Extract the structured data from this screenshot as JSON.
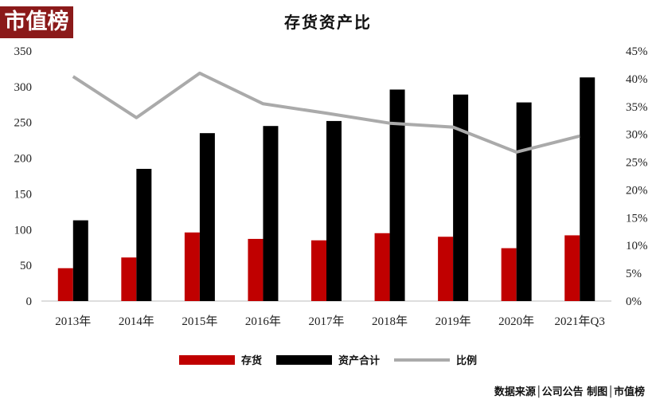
{
  "logo_text": "市值榜",
  "chart_data": {
    "type": "bar",
    "title": "存货资产比",
    "categories": [
      "2013年",
      "2014年",
      "2015年",
      "2016年",
      "2017年",
      "2018年",
      "2019年",
      "2020年",
      "2021年Q3"
    ],
    "series": [
      {
        "name": "存货",
        "type": "bar",
        "axis": "left",
        "color": "#c00000",
        "values": [
          46,
          61,
          96,
          87,
          85,
          95,
          90,
          74,
          92
        ]
      },
      {
        "name": "资产合计",
        "type": "bar",
        "axis": "left",
        "color": "#000000",
        "values": [
          113,
          185,
          235,
          245,
          252,
          296,
          289,
          278,
          313
        ]
      },
      {
        "name": "比例",
        "type": "line",
        "axis": "right",
        "color": "#aaaaaa",
        "values": [
          40.4,
          33.0,
          41.0,
          35.5,
          33.8,
          32.0,
          31.3,
          26.8,
          29.7
        ]
      }
    ],
    "ylim": [
      0,
      350
    ],
    "yticks": [
      0,
      50,
      100,
      150,
      200,
      250,
      300,
      350
    ],
    "y2lim": [
      0,
      45
    ],
    "y2ticks": [
      "0%",
      "5%",
      "10%",
      "15%",
      "20%",
      "25%",
      "30%",
      "35%",
      "40%",
      "45%"
    ],
    "grid": false,
    "legend": "bottom"
  },
  "footer": "数据来源│公司公告  制图│市值榜"
}
